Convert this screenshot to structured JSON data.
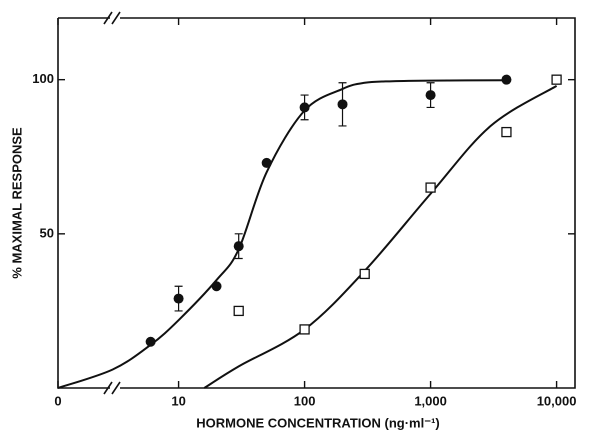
{
  "chart_data": {
    "type": "scatter",
    "xlabel": "HORMONE CONCENTRATION (ng·ml⁻¹)",
    "ylabel": "% MAXIMAL RESPONSE",
    "xscale": "log",
    "xlim": [
      0,
      14000
    ],
    "ylim": [
      0,
      120
    ],
    "xticks": [
      0,
      10,
      100,
      {
        "value": 1000,
        "label": "1,000"
      },
      {
        "value": 10000,
        "label": "10,000"
      }
    ],
    "yticks": [
      50,
      100
    ],
    "color": "#111111",
    "series": [
      {
        "marker": "circle",
        "x": [
          6,
          10,
          20,
          30,
          50,
          100,
          200,
          1000,
          4000
        ],
        "values": [
          15,
          29,
          33,
          46,
          73,
          91,
          92,
          95,
          100
        ],
        "errors": [
          null,
          4,
          null,
          4,
          null,
          4,
          7,
          4,
          null
        ]
      },
      {
        "marker": "square",
        "x": [
          30,
          100,
          300,
          1000,
          4000,
          10000
        ],
        "values": [
          25,
          19,
          37,
          65,
          83,
          100
        ]
      }
    ],
    "curves": [
      {
        "x": [
          0,
          3,
          6,
          10,
          20,
          30,
          50,
          100,
          200,
          300,
          500,
          1000,
          4000
        ],
        "values": [
          0,
          6,
          14,
          22,
          35,
          45,
          70,
          90,
          97,
          99,
          99.5,
          99.7,
          99.8
        ]
      },
      {
        "x": [
          16,
          30,
          100,
          300,
          1000,
          3000,
          10000
        ],
        "values": [
          0,
          7,
          19,
          38,
          63,
          85,
          98
        ]
      }
    ]
  }
}
